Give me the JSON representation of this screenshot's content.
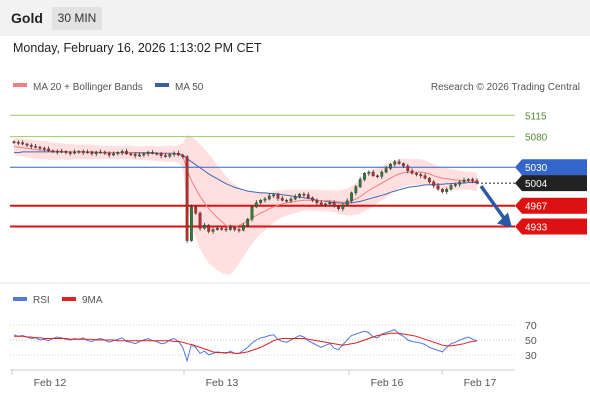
{
  "header": {
    "title": "Gold",
    "timeframe": "30 MIN"
  },
  "datetime": "Monday, February 16, 2026 1:13:02 PM CET",
  "legend": {
    "ma20": "MA 20 + Bollinger Bands",
    "ma50": "MA 50",
    "copyright": "Research © 2026 Trading Central",
    "rsi": "RSI",
    "ma9": "9MA"
  },
  "colors": {
    "ma20": "#f08080",
    "ma50": "#4169b0",
    "bands": "#ffd9d9",
    "resistance_green": "#99cc66",
    "level_blue": "#3366cc",
    "level_red": "#dd1111",
    "last_price": "#222222",
    "rsi": "#5577dd",
    "rsi_ma": "#dd2222",
    "candle_up": "#2e7d32",
    "candle_down": "#c62828"
  },
  "chart_data": {
    "type": "candlestick",
    "x_labels": [
      "Feb 12",
      "Feb 13",
      "Feb 16",
      "Feb 17"
    ],
    "levels": [
      {
        "value": 5115,
        "label": "5115",
        "style": "resistance"
      },
      {
        "value": 5080,
        "label": "5080",
        "style": "resistance"
      },
      {
        "value": 5030,
        "label": "5030",
        "style": "pivot"
      },
      {
        "value": 5004,
        "label": "5004",
        "style": "last"
      },
      {
        "value": 4967,
        "label": "4967",
        "style": "support"
      },
      {
        "value": 4933,
        "label": "4933",
        "style": "support"
      }
    ],
    "price_range": [
      4870,
      5140
    ],
    "close": [
      5071,
      5070,
      5068,
      5066,
      5064,
      5063,
      5061,
      5060,
      5057,
      5056,
      5055,
      5056,
      5054,
      5053,
      5055,
      5056,
      5054,
      5055,
      5052,
      5054,
      5055,
      5053,
      5050,
      5052,
      5054,
      5056,
      5052,
      5051,
      5049,
      5050,
      5052,
      5054,
      5053,
      5052,
      5049,
      5048,
      5051,
      5053,
      5050,
      5047,
      4910,
      4965,
      4955,
      4930,
      4935,
      4925,
      4928,
      4930,
      4929,
      4928,
      4932,
      4928,
      4927,
      4935,
      4945,
      4965,
      4972,
      4976,
      4978,
      4983,
      4985,
      4979,
      4976,
      4975,
      4978,
      4982,
      4986,
      4985,
      4980,
      4976,
      4972,
      4968,
      4970,
      4972,
      4966,
      4962,
      4968,
      4975,
      4988,
      4998,
      5010,
      5020,
      5022,
      5016,
      5015,
      5022,
      5028,
      5035,
      5039,
      5036,
      5032,
      5024,
      5020,
      5018,
      5016,
      5012,
      5006,
      5000,
      4994,
      4990,
      4994,
      5000,
      5002,
      5006,
      5009,
      5010,
      5008,
      5004
    ],
    "ma20": [
      5064,
      5063,
      5062,
      5061,
      5060,
      5059,
      5058,
      5058,
      5057,
      5056,
      5056,
      5056,
      5055,
      5055,
      5055,
      5055,
      5055,
      5055,
      5055,
      5055,
      5054,
      5054,
      5054,
      5054,
      5054,
      5054,
      5054,
      5054,
      5053,
      5053,
      5053,
      5053,
      5053,
      5052,
      5052,
      5052,
      5052,
      5052,
      5051,
      5049,
      5025,
      5008,
      4995,
      4982,
      4972,
      4962,
      4955,
      4947,
      4941,
      4935,
      4931,
      4932,
      4935,
      4938,
      4942,
      4947,
      4951,
      4955,
      4958,
      4962,
      4965,
      4968,
      4970,
      4972,
      4973,
      4974,
      4975,
      4976,
      4976,
      4976,
      4976,
      4975,
      4975,
      4975,
      4974,
      4973,
      4973,
      4973,
      4975,
      4978,
      4982,
      4987,
      4992,
      4996,
      5000,
      5004,
      5008,
      5012,
      5016,
      5019,
      5021,
      5022,
      5022,
      5022,
      5022,
      5021,
      5019,
      5016,
      5014,
      5012,
      5011,
      5010,
      5009,
      5009,
      5008,
      5008,
      5007,
      5006
    ],
    "ma50": [
      5054,
      5054,
      5055,
      5055,
      5055,
      5055,
      5055,
      5055,
      5055,
      5055,
      5055,
      5055,
      5055,
      5055,
      5055,
      5055,
      5055,
      5055,
      5055,
      5054,
      5054,
      5054,
      5054,
      5054,
      5054,
      5054,
      5054,
      5054,
      5054,
      5054,
      5054,
      5054,
      5054,
      5053,
      5053,
      5053,
      5053,
      5053,
      5052,
      5050,
      5044,
      5039,
      5034,
      5029,
      5024,
      5019,
      5015,
      5011,
      5007,
      5003,
      5000,
      4997,
      4995,
      4993,
      4991,
      4990,
      4989,
      4988,
      4988,
      4987,
      4987,
      4986,
      4985,
      4984,
      4983,
      4982,
      4981,
      4980,
      4979,
      4978,
      4976,
      4975,
      4974,
      4973,
      4972,
      4972,
      4971,
      4971,
      4972,
      4973,
      4974,
      4976,
      4978,
      4980,
      4982,
      4984,
      4986,
      4989,
      4991,
      4993,
      4995,
      4997,
      4998,
      4999,
      5000,
      5001,
      5001,
      5002,
      5002,
      5002,
      5003,
      5003,
      5004,
      5004,
      5004,
      5005,
      5005,
      5005
    ],
    "band_width": [
      14,
      14,
      14,
      15,
      15,
      15,
      15,
      15,
      15,
      14,
      14,
      13,
      13,
      13,
      12,
      12,
      12,
      12,
      12,
      11,
      11,
      11,
      11,
      11,
      11,
      11,
      11,
      11,
      11,
      11,
      11,
      12,
      12,
      12,
      12,
      13,
      13,
      13,
      14,
      20,
      58,
      72,
      80,
      86,
      88,
      89,
      88,
      86,
      84,
      80,
      76,
      70,
      62,
      55,
      48,
      42,
      38,
      34,
      31,
      28,
      26,
      24,
      22,
      21,
      20,
      19,
      18,
      17,
      17,
      17,
      17,
      17,
      17,
      18,
      18,
      19,
      20,
      22,
      24,
      26,
      28,
      29,
      30,
      30,
      29,
      28,
      27,
      26,
      25,
      24,
      23,
      22,
      21,
      21,
      21,
      20,
      19,
      19,
      18,
      18,
      17,
      17,
      16,
      16,
      15,
      15,
      15,
      15
    ],
    "projection": {
      "from": 5004,
      "to": 4933
    },
    "rsi": {
      "range": [
        15,
        85
      ],
      "ticks": [
        70,
        50,
        30
      ],
      "rsi": [
        57,
        55,
        56,
        54,
        52,
        53,
        50,
        51,
        49,
        52,
        54,
        53,
        51,
        50,
        52,
        51,
        53,
        49,
        48,
        51,
        52,
        50,
        47,
        49,
        51,
        53,
        48,
        47,
        45,
        48,
        50,
        52,
        49,
        48,
        45,
        46,
        50,
        52,
        48,
        40,
        22,
        44,
        40,
        32,
        35,
        30,
        32,
        34,
        33,
        32,
        35,
        32,
        32,
        36,
        40,
        46,
        50,
        53,
        54,
        56,
        57,
        51,
        48,
        47,
        50,
        53,
        56,
        54,
        49,
        46,
        43,
        40,
        43,
        45,
        39,
        37,
        44,
        50,
        56,
        58,
        60,
        62,
        60,
        54,
        53,
        58,
        60,
        62,
        64,
        58,
        55,
        50,
        48,
        47,
        46,
        44,
        40,
        38,
        36,
        34,
        40,
        45,
        47,
        50,
        52,
        54,
        51,
        49
      ],
      "ma9": [
        55,
        55,
        55,
        54,
        54,
        53,
        53,
        52,
        52,
        52,
        52,
        52,
        52,
        51,
        51,
        51,
        51,
        51,
        51,
        50,
        50,
        50,
        50,
        50,
        49,
        49,
        49,
        49,
        49,
        49,
        49,
        49,
        49,
        49,
        49,
        49,
        49,
        48,
        48,
        47,
        45,
        44,
        42,
        40,
        38,
        36,
        34,
        33,
        33,
        33,
        33,
        32,
        32,
        33,
        34,
        36,
        38,
        40,
        43,
        46,
        49,
        51,
        52,
        52,
        52,
        52,
        52,
        52,
        51,
        50,
        49,
        48,
        47,
        46,
        45,
        44,
        43,
        44,
        45,
        46,
        48,
        50,
        52,
        54,
        56,
        57,
        58,
        59,
        59,
        59,
        58,
        57,
        56,
        55,
        53,
        51,
        49,
        47,
        45,
        43,
        42,
        42,
        43,
        44,
        45,
        47,
        48,
        49
      ]
    }
  }
}
